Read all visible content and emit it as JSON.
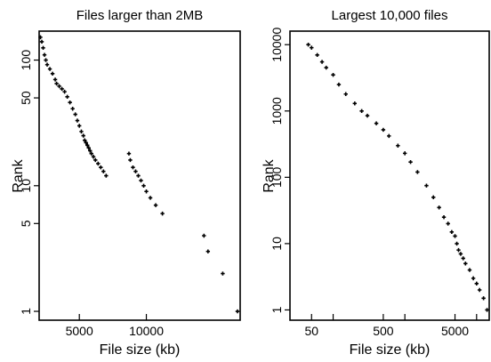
{
  "chart_data": [
    {
      "type": "scatter",
      "title": "Files larger than 2MB",
      "xlabel": "File size (kb)",
      "ylabel": "Rank",
      "x_scale": "linear",
      "y_scale": "log",
      "xlim": [
        2000,
        17000
      ],
      "ylim": [
        0.85,
        170
      ],
      "x_ticks": [
        5000,
        10000
      ],
      "x_tick_labels": [
        "5000",
        "10000"
      ],
      "y_ticks": [
        1,
        5,
        10,
        50,
        100
      ],
      "y_tick_labels": [
        "1",
        "5",
        "10",
        "50",
        "100"
      ],
      "series": [
        {
          "x": [
            2100,
            2200,
            2300,
            2400,
            2500,
            2600,
            2800,
            3000,
            3200,
            3300,
            3500,
            3700,
            3900,
            4100,
            4300,
            4500,
            4700,
            4850,
            5000,
            5150,
            5300,
            5400,
            5500,
            5600,
            5700,
            5800,
            5900,
            6050,
            6200,
            6400,
            6600,
            6800,
            7000,
            8700,
            8800,
            9000,
            9200,
            9400,
            9600,
            9800,
            10000,
            10300,
            10700,
            11200,
            14300,
            14600,
            15700,
            16800
          ],
          "y": [
            152,
            140,
            125,
            110,
            100,
            92,
            85,
            78,
            70,
            65,
            62,
            59,
            56,
            51,
            46,
            41,
            37,
            33,
            30,
            27,
            25,
            23,
            22,
            21,
            20,
            19,
            18,
            17,
            16,
            15,
            14,
            13,
            12,
            18,
            16,
            14,
            13,
            12,
            11,
            10,
            9,
            8,
            7,
            6,
            4,
            3,
            2,
            1
          ]
        }
      ]
    },
    {
      "type": "scatter",
      "title": "Largest 10,000 files",
      "xlabel": "File size (kb)",
      "ylabel": "Rank",
      "x_scale": "log",
      "y_scale": "log",
      "xlim": [
        25,
        15000
      ],
      "ylim": [
        0.7,
        16000
      ],
      "x_ticks": [
        50,
        100,
        500,
        1000,
        5000,
        10000
      ],
      "x_tick_labels": [
        "50",
        "",
        "500",
        "",
        "5000",
        ""
      ],
      "y_ticks": [
        1,
        10,
        100,
        1000,
        10000
      ],
      "y_tick_labels": [
        "1",
        "10",
        "100",
        "1000",
        "10000"
      ],
      "series": [
        {
          "x": [
            45,
            50,
            60,
            70,
            80,
            100,
            120,
            150,
            200,
            250,
            300,
            400,
            500,
            600,
            800,
            1000,
            1200,
            1500,
            2000,
            2500,
            3000,
            3500,
            4000,
            4500,
            5000,
            5300,
            5600,
            6000,
            6500,
            7000,
            8000,
            9000,
            10000,
            11000,
            12500,
            14000
          ],
          "y": [
            10000,
            9000,
            7000,
            5500,
            4500,
            3500,
            2500,
            1800,
            1300,
            1000,
            850,
            650,
            520,
            420,
            300,
            230,
            170,
            120,
            75,
            50,
            35,
            25,
            20,
            15,
            13,
            10,
            8,
            7,
            6,
            5,
            4,
            3,
            2.5,
            2,
            1.5,
            1
          ]
        }
      ]
    }
  ]
}
